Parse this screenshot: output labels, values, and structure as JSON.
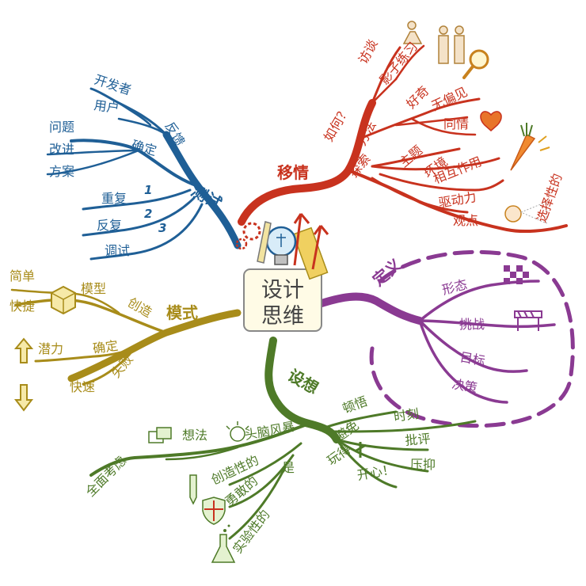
{
  "center": {
    "line1": "设计",
    "line2": "思维"
  },
  "colors": {
    "test": "#1f5f96",
    "empathy": "#c8321e",
    "mode": "#a88c1a",
    "define": "#8a3a92",
    "ideate": "#4e7a28"
  },
  "test": {
    "main": "测试",
    "feedback": "反馈",
    "developer": "开发者",
    "user": "用户",
    "confirm": "确定",
    "problem": "问题",
    "improve": "改进",
    "solution": "方案",
    "repeat": "重复",
    "iterate": "反复",
    "debug": "调试",
    "n1": "1",
    "n2": "2",
    "n3": "3"
  },
  "empathy": {
    "main": "移情",
    "how": "如何？",
    "interview": "访谈",
    "shadow": "影子练习",
    "method": "方法",
    "curious": "好奇",
    "unbiased": "无偏见",
    "sympathy": "同情",
    "explore": "探索",
    "theme": "主题",
    "environment": "环境",
    "interaction": "相互作用",
    "drive": "驱动力",
    "viewpoint": "观点",
    "selective": "选择性的"
  },
  "mode": {
    "main": "模式",
    "create": "创造",
    "model": "模型",
    "simple": "简单",
    "fast": "快捷",
    "confirm": "确定",
    "potential": "潜力",
    "fail": "失败",
    "quick": "快速"
  },
  "define": {
    "main": "定义",
    "form": "形态",
    "challenge": "挑战",
    "goal": "目标",
    "decision": "决策"
  },
  "ideate": {
    "main": "设想",
    "insight": "顿悟",
    "moment": "时刻",
    "avoid": "避免",
    "criticism": "批评",
    "suppress": "压抑",
    "play": "玩得",
    "happy": "开心！",
    "brainstorm": "头脑风暴",
    "idea": "想法",
    "comprehensive": "全面考虑",
    "is": "是",
    "creative": "创造性的",
    "brave": "勇敢的",
    "experimental": "实验性的"
  }
}
